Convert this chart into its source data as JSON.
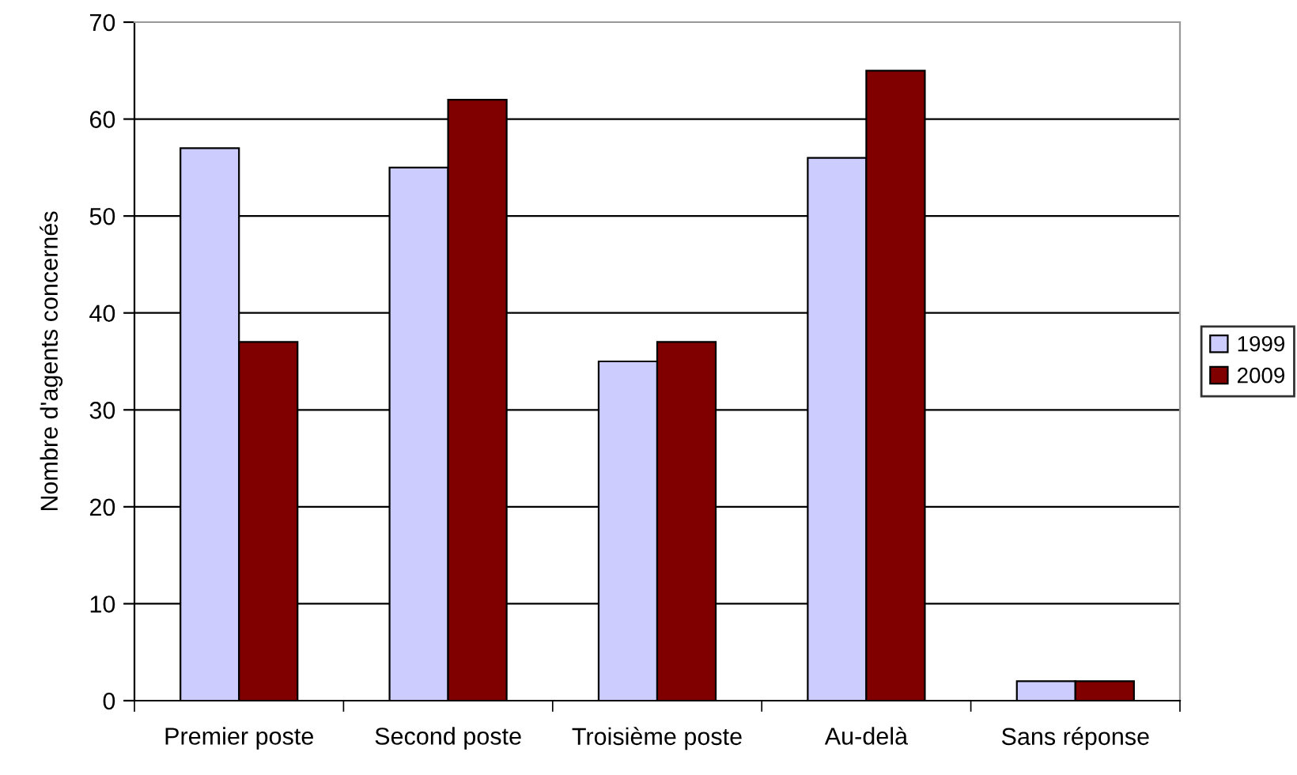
{
  "chart_data": {
    "type": "bar",
    "ylabel": "Nombre d'agents concernés",
    "categories": [
      "Premier poste",
      "Second poste",
      "Troisième poste",
      "Au-delà",
      "Sans réponse"
    ],
    "series": [
      {
        "name": "1999",
        "color": "#ccccff",
        "values": [
          57,
          55,
          35,
          56,
          2
        ]
      },
      {
        "name": "2009",
        "color": "#800000",
        "values": [
          37,
          62,
          37,
          65,
          2
        ]
      }
    ],
    "ylim": [
      0,
      70
    ],
    "yticks": [
      0,
      10,
      20,
      30,
      40,
      50,
      60,
      70
    ],
    "grid": "y",
    "legend": "right"
  }
}
